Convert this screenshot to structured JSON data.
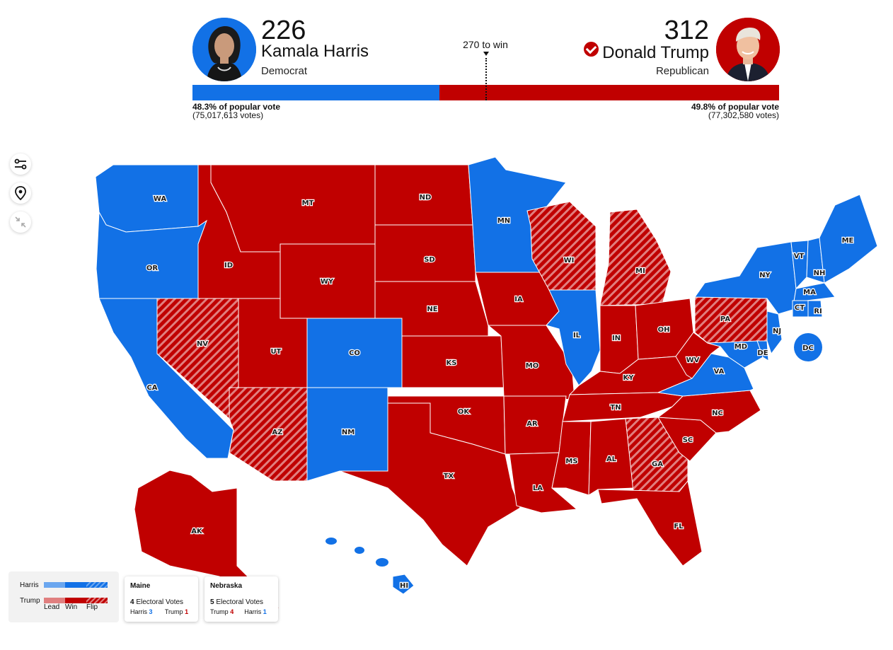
{
  "header": {
    "dem": {
      "name": "Kamala Harris",
      "party": "Democrat",
      "electoral_votes": "226",
      "pct_label": "48.3% of popular vote",
      "votes_label": "(75,017,613 votes)",
      "share": 0.421
    },
    "rep": {
      "name": "Donald Trump",
      "party": "Republican",
      "electoral_votes": "312",
      "pct_label": "49.8% of popular vote",
      "votes_label": "(77,302,580 votes)",
      "winner": true
    },
    "to_win": "270 to win"
  },
  "colors": {
    "dem": "#1271e6",
    "rep": "#c00000",
    "dem_lead": "#6aa6ef",
    "rep_lead": "#e07f7f"
  },
  "tools": [
    {
      "name": "filter-toggle-icon"
    },
    {
      "name": "location-pin-icon"
    },
    {
      "name": "collapse-arrows-icon"
    }
  ],
  "map_data": {
    "states": [
      {
        "abbr": "WA",
        "winner": "dem",
        "flip": false
      },
      {
        "abbr": "OR",
        "winner": "dem",
        "flip": false
      },
      {
        "abbr": "CA",
        "winner": "dem",
        "flip": false
      },
      {
        "abbr": "NV",
        "winner": "rep",
        "flip": true
      },
      {
        "abbr": "ID",
        "winner": "rep",
        "flip": false
      },
      {
        "abbr": "MT",
        "winner": "rep",
        "flip": false
      },
      {
        "abbr": "WY",
        "winner": "rep",
        "flip": false
      },
      {
        "abbr": "UT",
        "winner": "rep",
        "flip": false
      },
      {
        "abbr": "AZ",
        "winner": "rep",
        "flip": true
      },
      {
        "abbr": "CO",
        "winner": "dem",
        "flip": false
      },
      {
        "abbr": "NM",
        "winner": "dem",
        "flip": false
      },
      {
        "abbr": "ND",
        "winner": "rep",
        "flip": false
      },
      {
        "abbr": "SD",
        "winner": "rep",
        "flip": false
      },
      {
        "abbr": "NE",
        "winner": "rep",
        "flip": false
      },
      {
        "abbr": "KS",
        "winner": "rep",
        "flip": false
      },
      {
        "abbr": "OK",
        "winner": "rep",
        "flip": false
      },
      {
        "abbr": "TX",
        "winner": "rep",
        "flip": false
      },
      {
        "abbr": "MN",
        "winner": "dem",
        "flip": false
      },
      {
        "abbr": "IA",
        "winner": "rep",
        "flip": false
      },
      {
        "abbr": "MO",
        "winner": "rep",
        "flip": false
      },
      {
        "abbr": "AR",
        "winner": "rep",
        "flip": false
      },
      {
        "abbr": "LA",
        "winner": "rep",
        "flip": false
      },
      {
        "abbr": "WI",
        "winner": "rep",
        "flip": true
      },
      {
        "abbr": "IL",
        "winner": "dem",
        "flip": false
      },
      {
        "abbr": "MI",
        "winner": "rep",
        "flip": true
      },
      {
        "abbr": "IN",
        "winner": "rep",
        "flip": false
      },
      {
        "abbr": "OH",
        "winner": "rep",
        "flip": false
      },
      {
        "abbr": "KY",
        "winner": "rep",
        "flip": false
      },
      {
        "abbr": "TN",
        "winner": "rep",
        "flip": false
      },
      {
        "abbr": "MS",
        "winner": "rep",
        "flip": false
      },
      {
        "abbr": "AL",
        "winner": "rep",
        "flip": false
      },
      {
        "abbr": "GA",
        "winner": "rep",
        "flip": true
      },
      {
        "abbr": "FL",
        "winner": "rep",
        "flip": false
      },
      {
        "abbr": "SC",
        "winner": "rep",
        "flip": false
      },
      {
        "abbr": "NC",
        "winner": "rep",
        "flip": false
      },
      {
        "abbr": "VA",
        "winner": "dem",
        "flip": false
      },
      {
        "abbr": "WV",
        "winner": "rep",
        "flip": false
      },
      {
        "abbr": "PA",
        "winner": "rep",
        "flip": true
      },
      {
        "abbr": "NY",
        "winner": "dem",
        "flip": false
      },
      {
        "abbr": "VT",
        "winner": "dem",
        "flip": false
      },
      {
        "abbr": "NH",
        "winner": "dem",
        "flip": false
      },
      {
        "abbr": "ME",
        "winner": "dem",
        "flip": false
      },
      {
        "abbr": "MA",
        "winner": "dem",
        "flip": false
      },
      {
        "abbr": "CT",
        "winner": "dem",
        "flip": false
      },
      {
        "abbr": "RI",
        "winner": "dem",
        "flip": false
      },
      {
        "abbr": "NJ",
        "winner": "dem",
        "flip": false
      },
      {
        "abbr": "DE",
        "winner": "dem",
        "flip": false
      },
      {
        "abbr": "MD",
        "winner": "dem",
        "flip": false
      },
      {
        "abbr": "AK",
        "winner": "rep",
        "flip": false
      },
      {
        "abbr": "HI",
        "winner": "dem",
        "flip": false
      },
      {
        "abbr": "DC",
        "winner": "dem",
        "flip": false
      }
    ]
  },
  "legend": {
    "harris_label": "Harris",
    "trump_label": "Trump",
    "lead_label": "Lead",
    "win_label": "Win",
    "flip_label": "Flip"
  },
  "split_states": [
    {
      "state": "Maine",
      "count": "4",
      "votes_label": "Electoral Votes",
      "first_name": "Harris",
      "first_value": "3",
      "second_name": "Trump",
      "second_value": "1"
    },
    {
      "state": "Nebraska",
      "count": "5",
      "votes_label": "Electoral Votes",
      "first_name": "Trump",
      "first_value": "4",
      "second_name": "Harris",
      "second_value": "1"
    }
  ]
}
